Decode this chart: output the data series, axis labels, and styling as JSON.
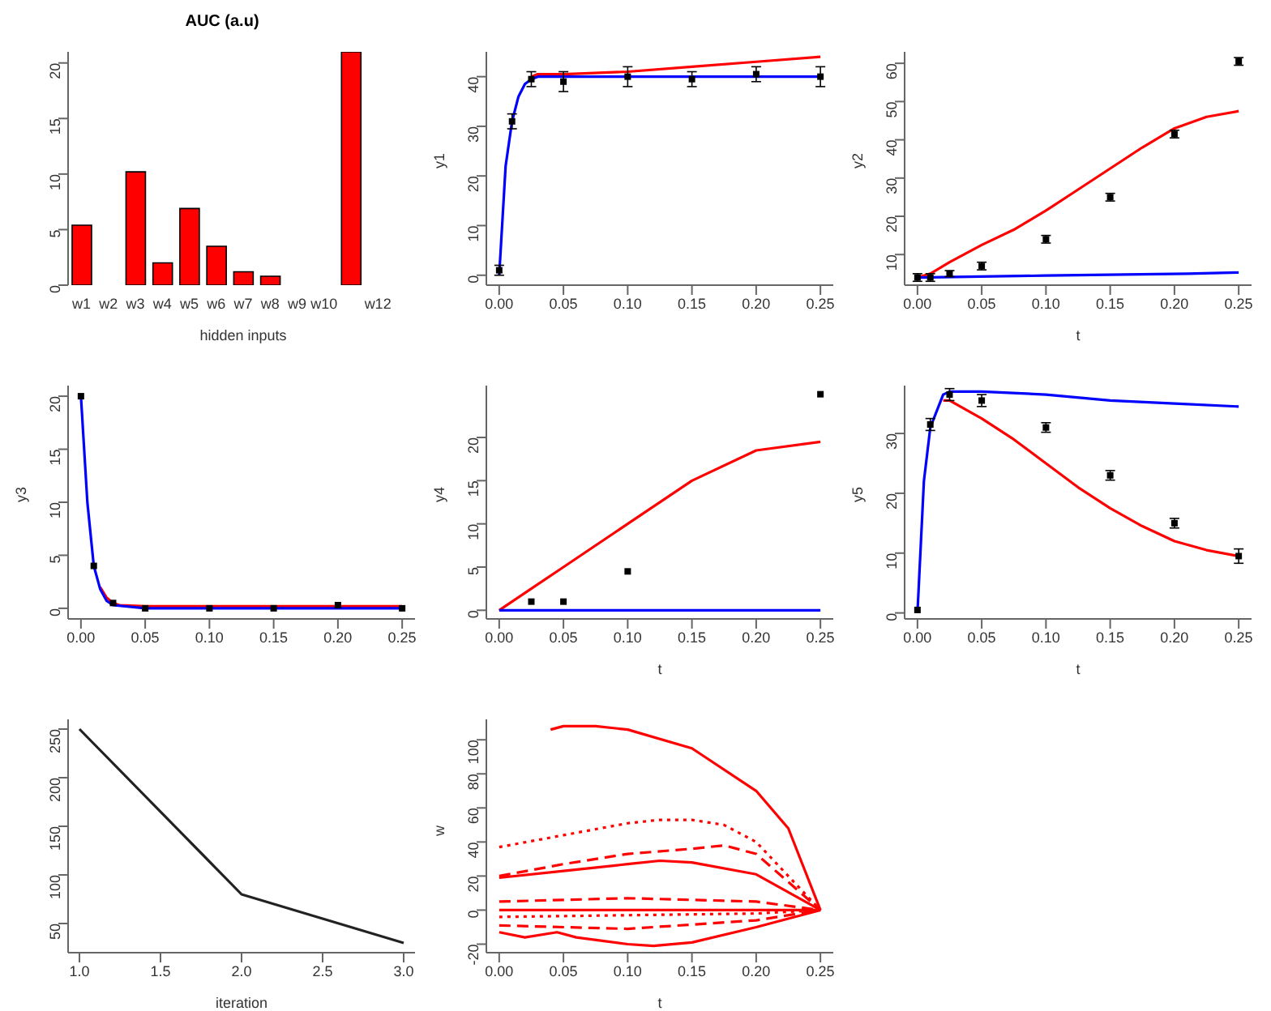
{
  "chart_data": [
    {
      "type": "bar",
      "title": "AUC (a.u)",
      "xlabel": "hidden inputs",
      "categories": [
        "w1",
        "w2",
        "w3",
        "w4",
        "w5",
        "w6",
        "w7",
        "w8",
        "w9",
        "w10",
        null,
        "w12",
        null
      ],
      "values": [
        5.4,
        0,
        10.2,
        2,
        6.9,
        3.5,
        1.2,
        0.8,
        0,
        0,
        21,
        0,
        0
      ],
      "color": "#ff0000",
      "ylim": [
        0,
        21
      ],
      "yticks": [
        0,
        5,
        10,
        15,
        20
      ]
    },
    {
      "type": "line",
      "ylabel": "y1",
      "xlim": [
        -0.01,
        0.26
      ],
      "xticks": [
        {
          "value": 0,
          "label": "0.00"
        },
        0.05,
        {
          "value": 0.1,
          "label": "0.10"
        },
        0.15,
        {
          "value": 0.2,
          "label": "0.20"
        },
        0.25
      ],
      "ylim": [
        -2,
        45
      ],
      "yticks": [
        0,
        10,
        20,
        30,
        40
      ],
      "series": [
        {
          "type": "line",
          "color": "#ff0000",
          "x": [
            0.025,
            0.03,
            0.05,
            0.1,
            0.15,
            0.2,
            0.25
          ],
          "values": [
            40,
            40.5,
            40.5,
            41,
            42,
            43,
            44
          ]
        },
        {
          "type": "line",
          "color": "#0000ff",
          "x": [
            0,
            0.005,
            0.01,
            0.015,
            0.02,
            0.025,
            0.03,
            0.05,
            0.1,
            0.15,
            0.2,
            0.25
          ],
          "values": [
            0,
            22,
            31,
            36,
            38.5,
            39.5,
            40,
            40,
            40,
            40,
            40,
            40
          ]
        },
        {
          "type": "scatter",
          "color": "#000000",
          "marker": "square",
          "x": [
            0,
            0.01,
            0.025,
            0.05,
            0.1,
            0.15,
            0.2,
            0.25
          ],
          "values": [
            1,
            31,
            39.5,
            39,
            40,
            39.5,
            40.5,
            40
          ],
          "errors": [
            1,
            1.5,
            1.5,
            2,
            2,
            1.5,
            1.5,
            2
          ]
        }
      ]
    },
    {
      "type": "line",
      "xlabel": "t",
      "ylabel": "y2",
      "xlim": [
        -0.01,
        0.26
      ],
      "xticks": [
        {
          "value": 0,
          "label": "0.00"
        },
        0.05,
        {
          "value": 0.1,
          "label": "0.10"
        },
        0.15,
        {
          "value": 0.2,
          "label": "0.20"
        },
        0.25
      ],
      "ylim": [
        2,
        63
      ],
      "yticks": [
        10,
        20,
        30,
        40,
        50,
        60
      ],
      "series": [
        {
          "type": "line",
          "color": "#ff0000",
          "x": [
            0,
            0.01,
            0.025,
            0.05,
            0.075,
            0.1,
            0.125,
            0.15,
            0.175,
            0.2,
            0.225,
            0.25
          ],
          "values": [
            4,
            5,
            8,
            12.5,
            16.5,
            21.5,
            27,
            32.5,
            38,
            43,
            46,
            47.5
          ]
        },
        {
          "type": "line",
          "color": "#0000ff",
          "x": [
            0,
            0.1,
            0.21,
            0.25
          ],
          "values": [
            4,
            4.5,
            5,
            5.3
          ]
        },
        {
          "type": "scatter",
          "color": "#000000",
          "marker": "square",
          "x": [
            0,
            0.01,
            0.025,
            0.05,
            0.1,
            0.15,
            0.2,
            0.25
          ],
          "values": [
            4,
            4,
            5,
            7,
            14,
            25,
            41.5,
            60.5
          ],
          "errors": [
            1,
            1,
            0.8,
            1,
            1,
            1,
            1,
            1
          ]
        }
      ]
    },
    {
      "type": "line",
      "ylabel": "y3",
      "xlim": [
        -0.01,
        0.26
      ],
      "xticks": [
        {
          "value": 0,
          "label": "0.00"
        },
        0.05,
        {
          "value": 0.1,
          "label": "0.10"
        },
        0.15,
        {
          "value": 0.2,
          "label": "0.20"
        },
        0.25
      ],
      "ylim": [
        -1,
        21
      ],
      "yticks": [
        0,
        5,
        10,
        15,
        20
      ],
      "series": [
        {
          "type": "line",
          "color": "#ff0000",
          "x": [
            0.015,
            0.02,
            0.025,
            0.03,
            0.05,
            0.25
          ],
          "values": [
            2,
            1,
            0.5,
            0.3,
            0.2,
            0.2
          ]
        },
        {
          "type": "line",
          "color": "#0000ff",
          "x": [
            0,
            0.005,
            0.01,
            0.015,
            0.02,
            0.025,
            0.05,
            0.25
          ],
          "values": [
            20,
            10,
            4,
            1.8,
            0.7,
            0.3,
            0,
            0
          ]
        },
        {
          "type": "scatter",
          "color": "#000000",
          "marker": "square",
          "x": [
            0,
            0.01,
            0.025,
            0.05,
            0.1,
            0.15,
            0.2,
            0.25
          ],
          "values": [
            20,
            4,
            0.5,
            0,
            0,
            0,
            0.3,
            0
          ]
        }
      ]
    },
    {
      "type": "line",
      "xlabel": "t",
      "ylabel": "y4",
      "xlim": [
        -0.01,
        0.26
      ],
      "xticks": [
        {
          "value": 0,
          "label": "0.00"
        },
        0.05,
        {
          "value": 0.1,
          "label": "0.10"
        },
        0.15,
        {
          "value": 0.2,
          "label": "0.20"
        },
        0.25
      ],
      "ylim": [
        -1,
        26
      ],
      "yticks": [
        0,
        5,
        10,
        15,
        20
      ],
      "series": [
        {
          "type": "line",
          "color": "#ff0000",
          "x": [
            0,
            0.01,
            0.025,
            0.05,
            0.1,
            0.15,
            0.2,
            0.25
          ],
          "values": [
            0,
            1,
            2.5,
            5,
            10,
            15,
            18.5,
            19.5
          ]
        },
        {
          "type": "line",
          "color": "#0000ff",
          "x": [
            0,
            0.25
          ],
          "values": [
            0,
            0
          ]
        },
        {
          "type": "scatter",
          "color": "#000000",
          "marker": "square",
          "x": [
            0.025,
            0.05,
            0.1,
            0.25
          ],
          "values": [
            1,
            1,
            4.5,
            25
          ]
        }
      ]
    },
    {
      "type": "line",
      "xlabel": "t",
      "ylabel": "y5",
      "xlim": [
        -0.01,
        0.26
      ],
      "xticks": [
        {
          "value": 0,
          "label": "0.00"
        },
        0.05,
        {
          "value": 0.1,
          "label": "0.10"
        },
        0.15,
        {
          "value": 0.2,
          "label": "0.20"
        },
        0.25
      ],
      "ylim": [
        -1,
        38
      ],
      "yticks": [
        0,
        10,
        20,
        30
      ],
      "series": [
        {
          "type": "line",
          "color": "#ff0000",
          "x": [
            0.02,
            0.025,
            0.05,
            0.075,
            0.1,
            0.125,
            0.15,
            0.175,
            0.2,
            0.225,
            0.25
          ],
          "values": [
            35.5,
            35.5,
            32.5,
            29,
            25,
            21,
            17.5,
            14.5,
            12,
            10.5,
            9.5
          ]
        },
        {
          "type": "line",
          "color": "#0000ff",
          "x": [
            0,
            0.005,
            0.01,
            0.02,
            0.025,
            0.05,
            0.1,
            0.15,
            0.2,
            0.25
          ],
          "values": [
            0,
            22,
            31,
            36.5,
            37,
            37,
            36.5,
            35.5,
            35,
            34.5
          ]
        },
        {
          "type": "scatter",
          "color": "#000000",
          "marker": "square",
          "x": [
            0,
            0.01,
            0.025,
            0.05,
            0.1,
            0.15,
            0.2,
            0.25
          ],
          "values": [
            0.5,
            31.5,
            36.5,
            35.5,
            31,
            23,
            15,
            9.5
          ],
          "errors": [
            null,
            1,
            1,
            1,
            0.8,
            0.8,
            0.8,
            1.2
          ]
        }
      ]
    },
    {
      "type": "line",
      "xlabel": "iteration",
      "xlim": [
        0.93,
        3.07
      ],
      "xticks": [
        {
          "value": 1,
          "label": "1.0"
        },
        1.5,
        {
          "value": 2,
          "label": "2.0"
        },
        2.5,
        {
          "value": 3,
          "label": "3.0"
        }
      ],
      "ylim": [
        20,
        260
      ],
      "yticks": [
        50,
        100,
        150,
        200,
        250
      ],
      "series": [
        {
          "type": "line",
          "color": "#222222",
          "x": [
            1,
            2,
            3
          ],
          "values": [
            250,
            80,
            30
          ]
        }
      ]
    },
    {
      "type": "line",
      "xlabel": "t",
      "ylabel": "w",
      "xlim": [
        -0.01,
        0.26
      ],
      "xticks": [
        {
          "value": 0,
          "label": "0.00"
        },
        0.05,
        {
          "value": 0.1,
          "label": "0.10"
        },
        0.15,
        {
          "value": 0.2,
          "label": "0.20"
        },
        0.25
      ],
      "ylim": [
        -25,
        112
      ],
      "yticks": [
        -20,
        0,
        20,
        40,
        60,
        80,
        100
      ],
      "series": [
        {
          "type": "line",
          "color": "#ff0000",
          "line_style": "solid",
          "x": [
            0.04,
            0.05,
            0.075,
            0.1,
            0.15,
            0.2,
            0.225,
            0.25
          ],
          "values": [
            106,
            108,
            108,
            106,
            95,
            70,
            48,
            0
          ]
        },
        {
          "type": "line",
          "color": "#ff0000",
          "line_style": "dotted",
          "x": [
            0,
            0.05,
            0.1,
            0.125,
            0.15,
            0.175,
            0.2,
            0.25
          ],
          "values": [
            37,
            44,
            51,
            53,
            53,
            50,
            40,
            0
          ]
        },
        {
          "type": "line",
          "color": "#ff0000",
          "line_style": "dashed",
          "x": [
            0,
            0.05,
            0.1,
            0.15,
            0.175,
            0.2,
            0.25
          ],
          "values": [
            20,
            27,
            33,
            36,
            38,
            33,
            0
          ]
        },
        {
          "type": "line",
          "color": "#ff0000",
          "line_style": "solid",
          "x": [
            0,
            0.05,
            0.1,
            0.125,
            0.15,
            0.2,
            0.25
          ],
          "values": [
            19,
            23,
            27,
            29,
            28,
            21,
            0
          ]
        },
        {
          "type": "line",
          "color": "#ff0000",
          "line_style": "dashed",
          "x": [
            0,
            0.1,
            0.2,
            0.25
          ],
          "values": [
            5,
            7,
            5,
            0
          ]
        },
        {
          "type": "line",
          "color": "#ff0000",
          "line_style": "solid",
          "x": [
            0,
            0.25
          ],
          "values": [
            0,
            0
          ]
        },
        {
          "type": "line",
          "color": "#ff0000",
          "line_style": "dotted",
          "x": [
            0,
            0.1,
            0.2,
            0.25
          ],
          "values": [
            -4,
            -3,
            -2,
            0
          ]
        },
        {
          "type": "line",
          "color": "#ff0000",
          "line_style": "dashed",
          "x": [
            0,
            0.1,
            0.2,
            0.25
          ],
          "values": [
            -9,
            -11,
            -6,
            0
          ]
        },
        {
          "type": "line",
          "color": "#ff0000",
          "line_style": "solid",
          "x": [
            0,
            0.02,
            0.045,
            0.06,
            0.1,
            0.12,
            0.15,
            0.2,
            0.25
          ],
          "values": [
            -13,
            -16,
            -13,
            -16,
            -20,
            -21,
            -19,
            -10,
            0
          ]
        }
      ]
    }
  ]
}
